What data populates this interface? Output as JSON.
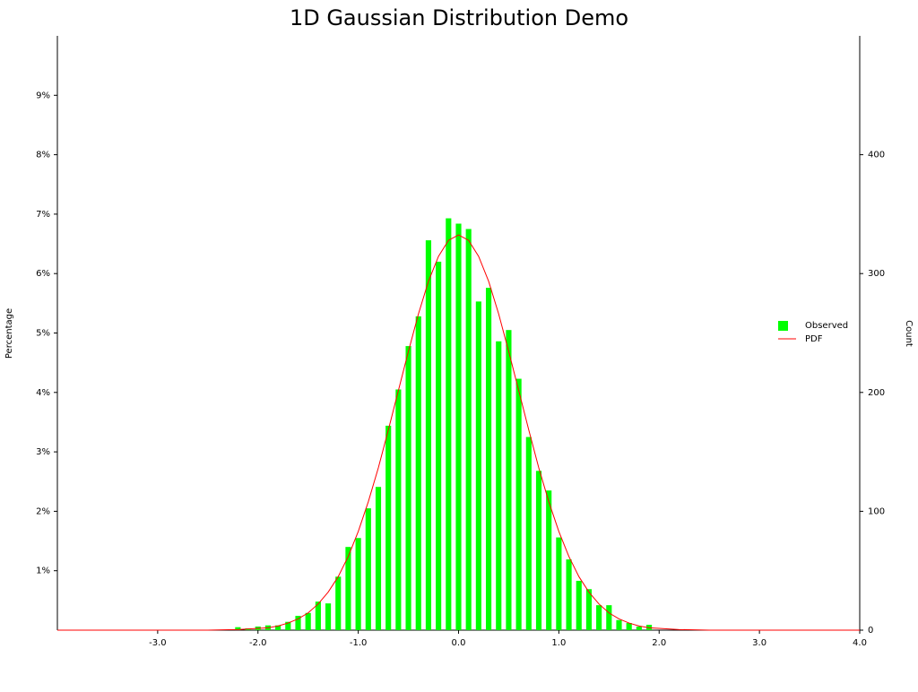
{
  "chart_data": {
    "type": "combo",
    "title": "1D Gaussian Distribution Demo",
    "ylabel": "Percentage",
    "y2label": "Count",
    "xlim": [
      -4,
      4
    ],
    "xticks": [
      {
        "value": -3,
        "label": "-3.0"
      },
      {
        "value": -2,
        "label": "-2.0"
      },
      {
        "value": -1,
        "label": "-1.0"
      },
      {
        "value": 0,
        "label": "0.0"
      },
      {
        "value": 1,
        "label": "1.0"
      },
      {
        "value": 2,
        "label": "2.0"
      },
      {
        "value": 3,
        "label": "3.0"
      },
      {
        "value": 4,
        "label": "4.0"
      }
    ],
    "ylim": [
      0,
      10
    ],
    "yticks": [
      {
        "value": 1,
        "label": "1%"
      },
      {
        "value": 2,
        "label": "2%"
      },
      {
        "value": 3,
        "label": "3%"
      },
      {
        "value": 4,
        "label": "4%"
      },
      {
        "value": 5,
        "label": "5%"
      },
      {
        "value": 6,
        "label": "6%"
      },
      {
        "value": 7,
        "label": "7%"
      },
      {
        "value": 8,
        "label": "8%"
      },
      {
        "value": 9,
        "label": "9%"
      }
    ],
    "y2lim": [
      0,
      500
    ],
    "y2ticks": [
      0,
      100,
      200,
      300,
      400
    ],
    "grid": false,
    "legend": "right",
    "series": [
      {
        "name": "Observed",
        "type": "bar",
        "color": "#00ff00",
        "x": [
          -2.2,
          -2.1,
          -2.0,
          -1.9,
          -1.8,
          -1.7,
          -1.6,
          -1.5,
          -1.4,
          -1.3,
          -1.2,
          -1.1,
          -1.0,
          -0.9,
          -0.8,
          -0.7,
          -0.6,
          -0.5,
          -0.4,
          -0.3,
          -0.2,
          -0.1,
          0.0,
          0.1,
          0.2,
          0.3,
          0.4,
          0.5,
          0.6,
          0.7,
          0.8,
          0.9,
          1.0,
          1.1,
          1.2,
          1.3,
          1.4,
          1.5,
          1.6,
          1.7,
          1.8,
          1.9
        ],
        "values": [
          0.05,
          0.03,
          0.06,
          0.08,
          0.08,
          0.14,
          0.24,
          0.29,
          0.48,
          0.45,
          0.9,
          1.4,
          1.55,
          2.05,
          2.41,
          3.44,
          4.05,
          4.78,
          5.28,
          6.56,
          6.2,
          6.93,
          6.84,
          6.75,
          5.53,
          5.76,
          4.86,
          5.05,
          4.23,
          3.25,
          2.68,
          2.35,
          1.56,
          1.19,
          0.83,
          0.69,
          0.42,
          0.42,
          0.17,
          0.12,
          0.06,
          0.09
        ]
      },
      {
        "name": "PDF",
        "type": "line",
        "color": "#ff0000",
        "x": [
          -4,
          -3,
          -2.5,
          -2.2,
          -2.0,
          -1.9,
          -1.8,
          -1.7,
          -1.6,
          -1.5,
          -1.4,
          -1.3,
          -1.2,
          -1.1,
          -1.0,
          -0.9,
          -0.8,
          -0.7,
          -0.6,
          -0.5,
          -0.4,
          -0.3,
          -0.2,
          -0.1,
          0.0,
          0.1,
          0.2,
          0.3,
          0.4,
          0.5,
          0.6,
          0.7,
          0.8,
          0.9,
          1.0,
          1.1,
          1.2,
          1.3,
          1.4,
          1.5,
          1.6,
          1.7,
          1.8,
          1.9,
          2.0,
          2.2,
          2.5,
          3,
          4
        ],
        "values": [
          0,
          0,
          0,
          0.01,
          0.03,
          0.04,
          0.07,
          0.12,
          0.19,
          0.29,
          0.44,
          0.64,
          0.9,
          1.24,
          1.66,
          2.16,
          2.73,
          3.37,
          4.03,
          4.69,
          5.32,
          5.87,
          6.29,
          6.56,
          6.65,
          6.56,
          6.29,
          5.87,
          5.32,
          4.69,
          4.03,
          3.37,
          2.73,
          2.16,
          1.66,
          1.24,
          0.9,
          0.64,
          0.44,
          0.29,
          0.19,
          0.12,
          0.07,
          0.04,
          0.03,
          0.01,
          0,
          0,
          0
        ]
      }
    ]
  }
}
